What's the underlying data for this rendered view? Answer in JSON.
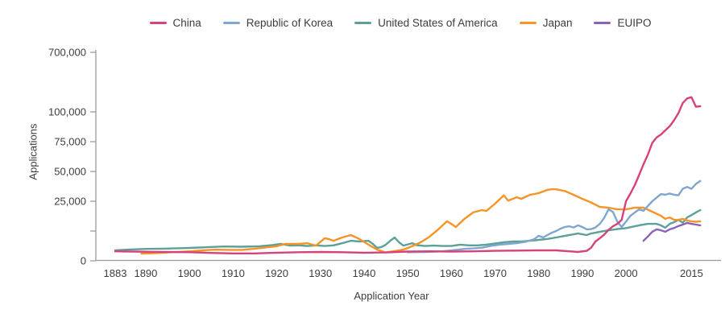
{
  "chart": {
    "y_axis_title": "Applications",
    "x_axis_title": "Application Year",
    "y_ticks": [
      {
        "value": 700000,
        "label": "700,000"
      },
      {
        "value": 100000,
        "label": "100,000"
      },
      {
        "value": 75000,
        "label": "75,000"
      },
      {
        "value": 50000,
        "label": "50,000"
      },
      {
        "value": 25000,
        "label": "25,000"
      },
      {
        "value": 12500,
        "label": ""
      },
      {
        "value": 0,
        "label": "0"
      }
    ],
    "x_ticks": [
      {
        "year": 1883,
        "label": "1883"
      },
      {
        "year": 1890,
        "label": "1890"
      },
      {
        "year": 1900,
        "label": "1900"
      },
      {
        "year": 1910,
        "label": "1910"
      },
      {
        "year": 1920,
        "label": "1920"
      },
      {
        "year": 1930,
        "label": "1930"
      },
      {
        "year": 1940,
        "label": "1940"
      },
      {
        "year": 1950,
        "label": "1950"
      },
      {
        "year": 1960,
        "label": "1960"
      },
      {
        "year": 1970,
        "label": "1970"
      },
      {
        "year": 1980,
        "label": "1980"
      },
      {
        "year": 1990,
        "label": "1990"
      },
      {
        "year": 2000,
        "label": "2000"
      },
      {
        "year": 2015,
        "label": "2015"
      }
    ]
  },
  "legend": {
    "items": [
      {
        "label": "China",
        "color": "#d6437c"
      },
      {
        "label": "Republic of Korea",
        "color": "#7ea6cf"
      },
      {
        "label": "United States of America",
        "color": "#5ba099"
      },
      {
        "label": "Japan",
        "color": "#f79428"
      },
      {
        "label": "EUIPO",
        "color": "#8a63b8"
      }
    ]
  },
  "chart_data": {
    "type": "line",
    "title": "",
    "xlabel": "Application Year",
    "ylabel": "Applications",
    "x_range": [
      1883,
      2017
    ],
    "ylim": [
      0,
      700000
    ],
    "y_tick_values": [
      0,
      12500,
      25000,
      50000,
      75000,
      100000,
      700000
    ],
    "y_scale_note": "non-linear axis: 0-25k wide, 25k-100k compressed, 100k-700k strongly compressed",
    "grid": false,
    "legend_position": "top-center",
    "series": [
      {
        "name": "China",
        "color": "#d6437c",
        "points": [
          [
            1883,
            4000
          ],
          [
            1887,
            3900
          ],
          [
            1891,
            3800
          ],
          [
            1895,
            3700
          ],
          [
            1900,
            3600
          ],
          [
            1905,
            3300
          ],
          [
            1910,
            3100
          ],
          [
            1915,
            3100
          ],
          [
            1920,
            3400
          ],
          [
            1925,
            3600
          ],
          [
            1930,
            3700
          ],
          [
            1935,
            3600
          ],
          [
            1940,
            3400
          ],
          [
            1945,
            3500
          ],
          [
            1950,
            3900
          ],
          [
            1955,
            4000
          ],
          [
            1960,
            3900
          ],
          [
            1965,
            4000
          ],
          [
            1970,
            4200
          ],
          [
            1975,
            4300
          ],
          [
            1980,
            4400
          ],
          [
            1984,
            4400
          ],
          [
            1987,
            4000
          ],
          [
            1989,
            3700
          ],
          [
            1991,
            4200
          ],
          [
            1992,
            5500
          ],
          [
            1993,
            8100
          ],
          [
            1994,
            9500
          ],
          [
            1995,
            11000
          ],
          [
            1996,
            13000
          ],
          [
            1997,
            14500
          ],
          [
            1998,
            15500
          ],
          [
            1999,
            17200
          ],
          [
            2000,
            25000
          ],
          [
            2001,
            31500
          ],
          [
            2002,
            38500
          ],
          [
            2003,
            47000
          ],
          [
            2004,
            56000
          ],
          [
            2005,
            64000
          ],
          [
            2006,
            74000
          ],
          [
            2007,
            78500
          ],
          [
            2008,
            81000
          ],
          [
            2009,
            84500
          ],
          [
            2010,
            88000
          ],
          [
            2011,
            93000
          ],
          [
            2012,
            99000
          ],
          [
            2013,
            190000
          ],
          [
            2014,
            235000
          ],
          [
            2015,
            248000
          ],
          [
            2016,
            152000
          ],
          [
            2017,
            157000
          ]
        ]
      },
      {
        "name": "Republic of Korea",
        "color": "#7ea6cf",
        "points": [
          [
            1950,
            3600
          ],
          [
            1954,
            3700
          ],
          [
            1958,
            4000
          ],
          [
            1961,
            4600
          ],
          [
            1963,
            5000
          ],
          [
            1965,
            5200
          ],
          [
            1967,
            5500
          ],
          [
            1969,
            6300
          ],
          [
            1971,
            6800
          ],
          [
            1973,
            7100
          ],
          [
            1975,
            7400
          ],
          [
            1977,
            8000
          ],
          [
            1979,
            9100
          ],
          [
            1980,
            10500
          ],
          [
            1981,
            9800
          ],
          [
            1982,
            10800
          ],
          [
            1983,
            11800
          ],
          [
            1984,
            12500
          ],
          [
            1985,
            13500
          ],
          [
            1986,
            14200
          ],
          [
            1987,
            14500
          ],
          [
            1988,
            14000
          ],
          [
            1989,
            14900
          ],
          [
            1990,
            14200
          ],
          [
            1991,
            13200
          ],
          [
            1992,
            13300
          ],
          [
            1993,
            14000
          ],
          [
            1994,
            15500
          ],
          [
            1995,
            18000
          ],
          [
            1996,
            21600
          ],
          [
            1997,
            20500
          ],
          [
            1998,
            16500
          ],
          [
            1999,
            14200
          ],
          [
            2000,
            16500
          ],
          [
            2001,
            18900
          ],
          [
            2002,
            20300
          ],
          [
            2003,
            21600
          ],
          [
            2004,
            21000
          ],
          [
            2005,
            23000
          ],
          [
            2006,
            25000
          ],
          [
            2007,
            28000
          ],
          [
            2008,
            31000
          ],
          [
            2009,
            30500
          ],
          [
            2010,
            31500
          ],
          [
            2011,
            30500
          ],
          [
            2012,
            30000
          ],
          [
            2013,
            35500
          ],
          [
            2014,
            37000
          ],
          [
            2015,
            35500
          ],
          [
            2016,
            39500
          ],
          [
            2017,
            42000
          ]
        ]
      },
      {
        "name": "United States of America",
        "color": "#5ba099",
        "points": [
          [
            1883,
            4400
          ],
          [
            1886,
            4700
          ],
          [
            1890,
            5000
          ],
          [
            1894,
            5100
          ],
          [
            1898,
            5300
          ],
          [
            1900,
            5400
          ],
          [
            1904,
            5700
          ],
          [
            1908,
            6000
          ],
          [
            1912,
            5900
          ],
          [
            1916,
            6100
          ],
          [
            1919,
            6600
          ],
          [
            1921,
            7100
          ],
          [
            1923,
            6400
          ],
          [
            1925,
            6500
          ],
          [
            1927,
            6200
          ],
          [
            1929,
            6500
          ],
          [
            1931,
            6200
          ],
          [
            1933,
            6500
          ],
          [
            1935,
            7400
          ],
          [
            1937,
            8400
          ],
          [
            1939,
            8100
          ],
          [
            1941,
            8400
          ],
          [
            1942,
            7100
          ],
          [
            1943,
            5400
          ],
          [
            1944,
            5800
          ],
          [
            1945,
            6800
          ],
          [
            1946,
            8400
          ],
          [
            1947,
            9800
          ],
          [
            1948,
            7800
          ],
          [
            1949,
            6400
          ],
          [
            1951,
            7400
          ],
          [
            1952,
            6600
          ],
          [
            1954,
            6200
          ],
          [
            1956,
            6400
          ],
          [
            1958,
            6200
          ],
          [
            1960,
            6200
          ],
          [
            1962,
            6800
          ],
          [
            1964,
            6500
          ],
          [
            1966,
            6500
          ],
          [
            1968,
            6800
          ],
          [
            1970,
            7300
          ],
          [
            1972,
            7800
          ],
          [
            1974,
            8100
          ],
          [
            1976,
            8100
          ],
          [
            1978,
            8400
          ],
          [
            1980,
            8800
          ],
          [
            1982,
            9200
          ],
          [
            1984,
            9800
          ],
          [
            1986,
            10500
          ],
          [
            1988,
            11100
          ],
          [
            1989,
            11500
          ],
          [
            1990,
            11100
          ],
          [
            1991,
            10800
          ],
          [
            1992,
            11500
          ],
          [
            1993,
            11800
          ],
          [
            1994,
            12200
          ],
          [
            1996,
            12800
          ],
          [
            1998,
            13300
          ],
          [
            2000,
            13700
          ],
          [
            2002,
            14500
          ],
          [
            2003,
            14900
          ],
          [
            2005,
            15500
          ],
          [
            2007,
            15500
          ],
          [
            2008,
            14900
          ],
          [
            2009,
            13900
          ],
          [
            2010,
            15500
          ],
          [
            2011,
            16200
          ],
          [
            2012,
            17200
          ],
          [
            2013,
            16000
          ],
          [
            2014,
            18200
          ],
          [
            2015,
            19200
          ],
          [
            2016,
            20300
          ],
          [
            2017,
            21300
          ]
        ]
      },
      {
        "name": "Japan",
        "color": "#f79428",
        "points": [
          [
            1889,
            3000
          ],
          [
            1892,
            3200
          ],
          [
            1895,
            3500
          ],
          [
            1898,
            3800
          ],
          [
            1900,
            4000
          ],
          [
            1903,
            4400
          ],
          [
            1906,
            4700
          ],
          [
            1909,
            4600
          ],
          [
            1912,
            4600
          ],
          [
            1915,
            5100
          ],
          [
            1918,
            5700
          ],
          [
            1920,
            6100
          ],
          [
            1922,
            7100
          ],
          [
            1925,
            7100
          ],
          [
            1927,
            7400
          ],
          [
            1929,
            6400
          ],
          [
            1931,
            9500
          ],
          [
            1932,
            9100
          ],
          [
            1933,
            8400
          ],
          [
            1935,
            9800
          ],
          [
            1937,
            10800
          ],
          [
            1939,
            9100
          ],
          [
            1941,
            6800
          ],
          [
            1943,
            4700
          ],
          [
            1945,
            3500
          ],
          [
            1947,
            4100
          ],
          [
            1949,
            4700
          ],
          [
            1951,
            6100
          ],
          [
            1953,
            7800
          ],
          [
            1955,
            10100
          ],
          [
            1957,
            13200
          ],
          [
            1959,
            16600
          ],
          [
            1960,
            15500
          ],
          [
            1961,
            14200
          ],
          [
            1963,
            17600
          ],
          [
            1965,
            20300
          ],
          [
            1967,
            21300
          ],
          [
            1968,
            20900
          ],
          [
            1970,
            24000
          ],
          [
            1972,
            30000
          ],
          [
            1973,
            25500
          ],
          [
            1975,
            28400
          ],
          [
            1976,
            27000
          ],
          [
            1978,
            30400
          ],
          [
            1980,
            31800
          ],
          [
            1982,
            34500
          ],
          [
            1983,
            35100
          ],
          [
            1984,
            35100
          ],
          [
            1986,
            33500
          ],
          [
            1988,
            30400
          ],
          [
            1990,
            27000
          ],
          [
            1992,
            24500
          ],
          [
            1994,
            22600
          ],
          [
            1996,
            22300
          ],
          [
            1998,
            21600
          ],
          [
            2000,
            21600
          ],
          [
            2002,
            22300
          ],
          [
            2004,
            22300
          ],
          [
            2006,
            20600
          ],
          [
            2008,
            18900
          ],
          [
            2009,
            17600
          ],
          [
            2010,
            18200
          ],
          [
            2011,
            17200
          ],
          [
            2012,
            17200
          ],
          [
            2013,
            17600
          ],
          [
            2014,
            16900
          ],
          [
            2015,
            16600
          ],
          [
            2016,
            16400
          ],
          [
            2017,
            16600
          ]
        ]
      },
      {
        "name": "EUIPO",
        "color": "#8a63b8",
        "points": [
          [
            2004,
            8400
          ],
          [
            2005,
            10200
          ],
          [
            2006,
            12200
          ],
          [
            2007,
            13200
          ],
          [
            2008,
            12800
          ],
          [
            2009,
            12200
          ],
          [
            2010,
            13200
          ],
          [
            2011,
            13800
          ],
          [
            2012,
            14600
          ],
          [
            2013,
            15200
          ],
          [
            2014,
            15900
          ],
          [
            2015,
            15500
          ],
          [
            2016,
            15200
          ],
          [
            2017,
            14900
          ]
        ]
      }
    ]
  }
}
